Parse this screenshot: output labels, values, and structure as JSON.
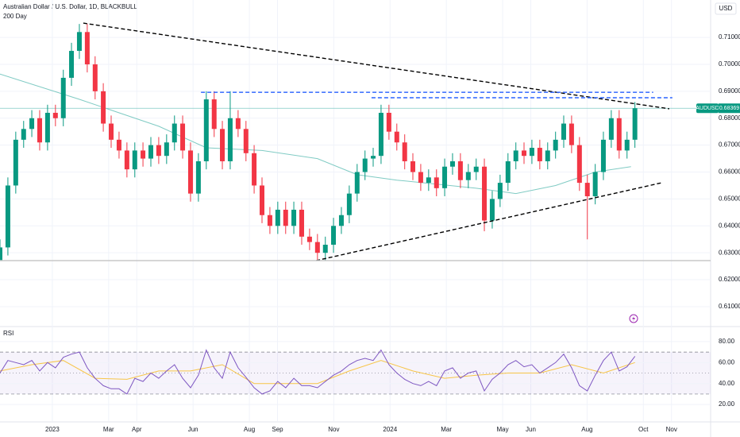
{
  "chart_data": [
    {
      "type": "candlestick",
      "title": "Australian Dollar / U.S. Dollar, 1D, BLACKBULL",
      "currency": "USD",
      "symbol": "AUDUSD",
      "last_price": 0.68369,
      "up_color": "#089981",
      "down_color": "#f23645",
      "x": [
        -1.86,
        -1.58,
        -1.3,
        -1.02,
        -0.73,
        -0.45,
        -0.17,
        0.11,
        0.39,
        0.68,
        0.96,
        1.24,
        1.52,
        1.81,
        2.09,
        2.37,
        2.65,
        2.93,
        3.22,
        3.5,
        3.78,
        4.06,
        4.34,
        4.63,
        4.91,
        5.19,
        5.47,
        5.75,
        6.04,
        6.32,
        6.6,
        6.88,
        7.17,
        7.45,
        7.73,
        8.01,
        8.29,
        8.58,
        8.86,
        9.14,
        9.42,
        9.7,
        9.99,
        10.27,
        10.55,
        10.83,
        11.11,
        11.4,
        11.68,
        11.96,
        12.24,
        12.52,
        12.81,
        13.09,
        13.37,
        13.65,
        13.94,
        14.22,
        14.5,
        14.78,
        15.06,
        15.35,
        15.63,
        15.91,
        16.19,
        16.47,
        16.76,
        17.04,
        17.32,
        17.6,
        17.88,
        18.17,
        18.45,
        18.73,
        19.01,
        19.29,
        19.58,
        19.86,
        20.14,
        20.42,
        20.7
      ],
      "open": [
        0.627,
        0.632,
        0.655,
        0.672,
        0.676,
        0.68,
        0.671,
        0.682,
        0.68,
        0.695,
        0.705,
        0.712,
        0.7,
        0.69,
        0.678,
        0.672,
        0.668,
        0.661,
        0.668,
        0.665,
        0.67,
        0.666,
        0.671,
        0.678,
        0.668,
        0.652,
        0.664,
        0.687,
        0.676,
        0.664,
        0.68,
        0.676,
        0.667,
        0.655,
        0.644,
        0.64,
        0.646,
        0.64,
        0.646,
        0.636,
        0.634,
        0.63,
        0.633,
        0.64,
        0.644,
        0.652,
        0.66,
        0.665,
        0.666,
        0.682,
        0.675,
        0.671,
        0.664,
        0.66,
        0.656,
        0.658,
        0.654,
        0.662,
        0.664,
        0.657,
        0.66,
        0.662,
        0.642,
        0.65,
        0.656,
        0.664,
        0.668,
        0.666,
        0.669,
        0.664,
        0.668,
        0.672,
        0.678,
        0.67,
        0.656,
        0.651,
        0.66,
        0.672,
        0.68,
        0.668,
        0.672
      ],
      "high": [
        0.635,
        0.658,
        0.675,
        0.679,
        0.683,
        0.683,
        0.685,
        0.685,
        0.698,
        0.708,
        0.715,
        0.715,
        0.703,
        0.693,
        0.681,
        0.675,
        0.671,
        0.671,
        0.671,
        0.673,
        0.673,
        0.674,
        0.681,
        0.681,
        0.671,
        0.667,
        0.69,
        0.69,
        0.679,
        0.69,
        0.683,
        0.679,
        0.67,
        0.658,
        0.647,
        0.649,
        0.649,
        0.649,
        0.649,
        0.639,
        0.637,
        0.636,
        0.643,
        0.647,
        0.655,
        0.663,
        0.668,
        0.669,
        0.685,
        0.685,
        0.678,
        0.674,
        0.667,
        0.663,
        0.661,
        0.661,
        0.665,
        0.667,
        0.667,
        0.663,
        0.665,
        0.665,
        0.653,
        0.659,
        0.667,
        0.671,
        0.671,
        0.672,
        0.672,
        0.671,
        0.675,
        0.681,
        0.681,
        0.673,
        0.659,
        0.663,
        0.675,
        0.683,
        0.683,
        0.675,
        0.686
      ],
      "low": [
        0.627,
        0.629,
        0.652,
        0.669,
        0.673,
        0.668,
        0.668,
        0.677,
        0.677,
        0.692,
        0.702,
        0.697,
        0.687,
        0.675,
        0.669,
        0.665,
        0.658,
        0.658,
        0.662,
        0.662,
        0.663,
        0.663,
        0.668,
        0.665,
        0.649,
        0.649,
        0.661,
        0.673,
        0.661,
        0.661,
        0.673,
        0.664,
        0.652,
        0.641,
        0.637,
        0.637,
        0.637,
        0.637,
        0.633,
        0.631,
        0.627,
        0.627,
        0.63,
        0.637,
        0.641,
        0.649,
        0.657,
        0.662,
        0.663,
        0.672,
        0.668,
        0.661,
        0.657,
        0.653,
        0.653,
        0.651,
        0.651,
        0.659,
        0.654,
        0.654,
        0.657,
        0.638,
        0.639,
        0.647,
        0.653,
        0.661,
        0.663,
        0.663,
        0.661,
        0.661,
        0.665,
        0.669,
        0.667,
        0.653,
        0.635,
        0.648,
        0.657,
        0.669,
        0.665,
        0.665,
        0.669
      ],
      "close": [
        0.632,
        0.655,
        0.672,
        0.676,
        0.68,
        0.671,
        0.682,
        0.68,
        0.695,
        0.705,
        0.712,
        0.7,
        0.69,
        0.678,
        0.672,
        0.668,
        0.661,
        0.668,
        0.665,
        0.67,
        0.666,
        0.671,
        0.678,
        0.668,
        0.652,
        0.664,
        0.687,
        0.676,
        0.664,
        0.68,
        0.676,
        0.667,
        0.655,
        0.644,
        0.64,
        0.646,
        0.64,
        0.646,
        0.636,
        0.634,
        0.63,
        0.633,
        0.64,
        0.644,
        0.652,
        0.66,
        0.665,
        0.666,
        0.682,
        0.675,
        0.671,
        0.664,
        0.66,
        0.656,
        0.658,
        0.654,
        0.662,
        0.664,
        0.657,
        0.66,
        0.662,
        0.642,
        0.65,
        0.656,
        0.664,
        0.668,
        0.666,
        0.669,
        0.664,
        0.668,
        0.672,
        0.678,
        0.67,
        0.656,
        0.651,
        0.66,
        0.672,
        0.68,
        0.668,
        0.672,
        0.68369
      ],
      "overlays": [
        {
          "name": "200 Day",
          "color": "#80cbc4",
          "x": [
            -1.86,
            0.96,
            3.78,
            5.47,
            7.45,
            9.42,
            10.83,
            12.24,
            15.06,
            16.47,
            17.88,
            19.29,
            20.56
          ],
          "values": [
            0.6964,
            0.687,
            0.677,
            0.669,
            0.668,
            0.665,
            0.659,
            0.657,
            0.654,
            0.652,
            0.655,
            0.66,
            0.662
          ]
        }
      ],
      "drawings": [
        {
          "x": [
            1.1,
            21.92
          ],
          "values": [
            0.7153,
            0.6835
          ],
          "color": "#000000",
          "dashed": true
        },
        {
          "x": [
            9.37,
            21.64
          ],
          "values": [
            0.6271,
            0.656
          ],
          "color": "#000000",
          "dashed": true
        },
        {
          "x": [
            5.28,
            21.35
          ],
          "values": [
            0.6896,
            0.6896
          ],
          "color": "#2962ff",
          "dashed": true
        },
        {
          "x": [
            11.34,
            22.03
          ],
          "values": [
            0.6876,
            0.6876
          ],
          "color": "#2962ff",
          "dashed": true
        },
        {
          "x": [
            -1.86,
            23.39
          ],
          "values": [
            0.6271,
            0.6271
          ],
          "color": "#c8c8c8",
          "dashed": false
        }
      ],
      "xlim": [
        -1.86,
        23.39
      ],
      "ylim": [
        0.6029,
        0.7239
      ],
      "yticks": [
        {
          "value": 0.71,
          "label": "0.71000"
        },
        {
          "value": 0.7,
          "label": "0.70000"
        },
        {
          "value": 0.69,
          "label": "0.69000"
        },
        {
          "value": 0.68,
          "label": "0.68000"
        },
        {
          "value": 0.67,
          "label": "0.67000"
        },
        {
          "value": 0.66,
          "label": "0.66000"
        },
        {
          "value": 0.65,
          "label": "0.65000"
        },
        {
          "value": 0.64,
          "label": "0.64000"
        },
        {
          "value": 0.63,
          "label": "0.63000"
        },
        {
          "value": 0.62,
          "label": "0.62000"
        },
        {
          "value": 0.61,
          "label": "0.61000"
        }
      ],
      "xticks": [
        {
          "value": 0,
          "label": "2023"
        },
        {
          "value": 2,
          "label": "Mar"
        },
        {
          "value": 3,
          "label": "Apr"
        },
        {
          "value": 5,
          "label": "Jun"
        },
        {
          "value": 7,
          "label": "Aug"
        },
        {
          "value": 8,
          "label": "Sep"
        },
        {
          "value": 10,
          "label": "Nov"
        },
        {
          "value": 12,
          "label": "2024"
        },
        {
          "value": 14,
          "label": "Mar"
        },
        {
          "value": 16,
          "label": "May"
        },
        {
          "value": 17,
          "label": "Jun"
        },
        {
          "value": 19,
          "label": "Aug"
        },
        {
          "value": 21,
          "label": "Oct"
        },
        {
          "value": 22,
          "label": "Nov"
        }
      ]
    },
    {
      "type": "line",
      "title": "RSI",
      "x": [
        -1.86,
        -1.58,
        -1.3,
        -1.02,
        -0.73,
        -0.45,
        -0.17,
        0.11,
        0.39,
        0.68,
        0.96,
        1.24,
        1.52,
        1.81,
        2.09,
        2.37,
        2.65,
        2.93,
        3.22,
        3.5,
        3.78,
        4.06,
        4.34,
        4.63,
        4.91,
        5.19,
        5.47,
        5.75,
        6.04,
        6.32,
        6.6,
        6.88,
        7.17,
        7.45,
        7.73,
        8.01,
        8.29,
        8.58,
        8.86,
        9.14,
        9.42,
        9.7,
        9.99,
        10.27,
        10.55,
        10.83,
        11.11,
        11.4,
        11.68,
        11.96,
        12.24,
        12.52,
        12.81,
        13.09,
        13.37,
        13.65,
        13.94,
        14.22,
        14.5,
        14.78,
        15.06,
        15.35,
        15.63,
        15.91,
        16.19,
        16.47,
        16.76,
        17.04,
        17.32,
        17.6,
        17.88,
        18.17,
        18.45,
        18.73,
        19.01,
        19.29,
        19.58,
        19.86,
        20.14,
        20.42,
        20.7
      ],
      "series": [
        {
          "name": "RSI",
          "color": "#7e57c2",
          "values": [
            50,
            62,
            60,
            58,
            62,
            52,
            60,
            55,
            65,
            68,
            70,
            55,
            45,
            38,
            35,
            35,
            30,
            45,
            42,
            50,
            45,
            52,
            58,
            45,
            36,
            48,
            72,
            55,
            45,
            70,
            55,
            46,
            36,
            30,
            33,
            42,
            36,
            45,
            38,
            38,
            36,
            42,
            48,
            52,
            58,
            62,
            64,
            62,
            72,
            58,
            50,
            44,
            40,
            38,
            42,
            38,
            52,
            55,
            45,
            50,
            52,
            33,
            44,
            50,
            58,
            62,
            56,
            58,
            50,
            55,
            60,
            68,
            55,
            38,
            33,
            48,
            62,
            70,
            52,
            56,
            66
          ]
        }
      ],
      "ma": {
        "color": "#f7c548",
        "x": [
          -1.86,
          -0.73,
          0.39,
          1.52,
          2.65,
          3.78,
          4.91,
          6.04,
          7.17,
          8.29,
          9.42,
          10.55,
          11.68,
          12.81,
          13.94,
          15.06,
          16.19,
          17.32,
          18.45,
          19.58,
          20.7
        ],
        "values": [
          52,
          58,
          62,
          45,
          44,
          52,
          52,
          58,
          40,
          40,
          40,
          52,
          62,
          52,
          45,
          48,
          50,
          50,
          58,
          50,
          60
        ]
      },
      "band": [
        30,
        70
      ],
      "midline": 50,
      "band_color": "#7e57c2",
      "xlim": [
        -1.86,
        23.39
      ],
      "ylim": [
        4.2,
        92.8
      ],
      "yticks": [
        {
          "value": 80,
          "label": "80.00"
        },
        {
          "value": 60,
          "label": "60.00"
        },
        {
          "value": 40,
          "label": "40.00"
        },
        {
          "value": 20,
          "label": "20.00"
        }
      ]
    }
  ]
}
